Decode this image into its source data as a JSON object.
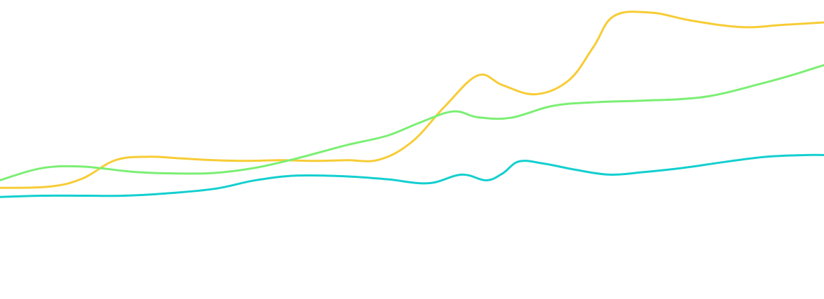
{
  "chart_data": {
    "type": "line",
    "title": "",
    "xlabel": "",
    "ylabel": "",
    "grid": false,
    "legend": "none",
    "xlim": [
      0,
      1000
    ],
    "ylim": [
      0,
      100
    ],
    "series": [
      {
        "color": "#f7cc35",
        "points": [
          [
            0,
            26.2
          ],
          [
            60,
            26.7
          ],
          [
            100,
            30.0
          ],
          [
            140,
            37.5
          ],
          [
            180,
            38.9
          ],
          [
            220,
            38.2
          ],
          [
            260,
            37.5
          ],
          [
            300,
            37.2
          ],
          [
            340,
            37.5
          ],
          [
            380,
            37.2
          ],
          [
            420,
            37.5
          ],
          [
            460,
            37.7
          ],
          [
            500,
            45.0
          ],
          [
            540,
            59.5
          ],
          [
            580,
            72.1
          ],
          [
            610,
            68.1
          ],
          [
            650,
            64.4
          ],
          [
            690,
            70.0
          ],
          [
            720,
            83.6
          ],
          [
            745,
            96.3
          ],
          [
            790,
            97.7
          ],
          [
            840,
            94.4
          ],
          [
            900,
            91.8
          ],
          [
            950,
            92.7
          ],
          [
            1000,
            93.7
          ]
        ]
      },
      {
        "color": "#7bef73",
        "points": [
          [
            0,
            29.3
          ],
          [
            50,
            34.2
          ],
          [
            100,
            34.9
          ],
          [
            160,
            32.8
          ],
          [
            210,
            32.1
          ],
          [
            260,
            32.3
          ],
          [
            310,
            34.4
          ],
          [
            360,
            38.2
          ],
          [
            420,
            43.6
          ],
          [
            470,
            47.5
          ],
          [
            510,
            52.9
          ],
          [
            550,
            57.4
          ],
          [
            580,
            55.0
          ],
          [
            620,
            54.8
          ],
          [
            670,
            59.6
          ],
          [
            720,
            61.1
          ],
          [
            780,
            61.8
          ],
          [
            830,
            62.5
          ],
          [
            870,
            64.2
          ],
          [
            920,
            68.4
          ],
          [
            960,
            72.1
          ],
          [
            1000,
            76.3
          ]
        ]
      },
      {
        "color": "#13cfcf",
        "points": [
          [
            0,
            22.5
          ],
          [
            50,
            23.0
          ],
          [
            100,
            23.0
          ],
          [
            150,
            23.0
          ],
          [
            200,
            23.9
          ],
          [
            260,
            25.8
          ],
          [
            310,
            29.3
          ],
          [
            360,
            31.2
          ],
          [
            420,
            30.9
          ],
          [
            470,
            29.7
          ],
          [
            520,
            28.1
          ],
          [
            560,
            31.6
          ],
          [
            590,
            29.3
          ],
          [
            610,
            32.1
          ],
          [
            630,
            37.0
          ],
          [
            660,
            36.1
          ],
          [
            700,
            33.5
          ],
          [
            740,
            31.6
          ],
          [
            780,
            32.6
          ],
          [
            830,
            34.4
          ],
          [
            880,
            36.8
          ],
          [
            930,
            38.9
          ],
          [
            980,
            39.6
          ],
          [
            1000,
            39.6
          ]
        ]
      }
    ]
  }
}
